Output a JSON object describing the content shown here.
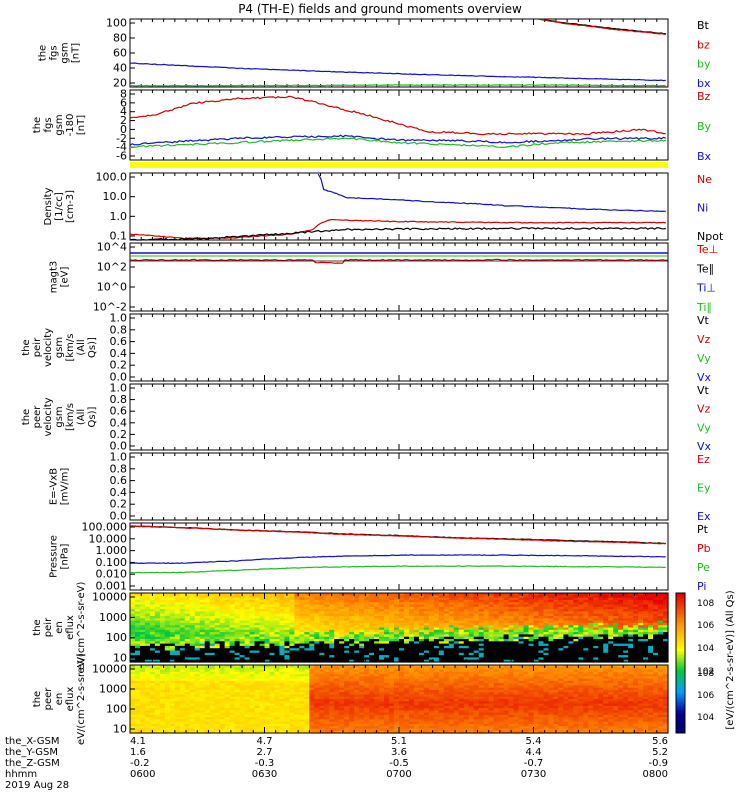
{
  "title": "P4 (TH-E) fields and ground moments overview",
  "colors": {
    "black": "#000000",
    "red": "#d00000",
    "green": "#22bb22",
    "blue": "#1010c8",
    "yellow": "#ffff00"
  },
  "time_axis": {
    "ticks": [
      "0600",
      "0630",
      "0700",
      "0730",
      "0800"
    ],
    "x_gsm": [
      "4.1",
      "4.7",
      "5.1",
      "5.4",
      "5.6"
    ],
    "y_gsm": [
      "1.6",
      "2.7",
      "3.6",
      "4.4",
      "5.2"
    ],
    "z_gsm": [
      "-0.2",
      "-0.3",
      "-0.5",
      "-0.7",
      "-0.9"
    ],
    "row_labels": [
      "the_X-GSM",
      "the_Y-GSM",
      "the_Z-GSM",
      "hhmm"
    ],
    "date": "2019 Aug 28"
  },
  "chart_data": [
    {
      "type": "line",
      "id": "fgs_btot",
      "ylabel": "the fgs gsm [nT]",
      "ylim": [
        0,
        105
      ],
      "yticks": [
        "100",
        "80",
        "60",
        "40",
        "20"
      ],
      "series": [
        {
          "name": "Bt",
          "color": "#000000",
          "points": [
            [
              0.76,
              105
            ],
            [
              0.8,
              100
            ],
            [
              0.85,
              95
            ],
            [
              0.9,
              90
            ],
            [
              0.95,
              86
            ],
            [
              1.0,
              82
            ]
          ]
        },
        {
          "name": "bz",
          "color": "#d00000",
          "points": [
            [
              0.76,
              105
            ],
            [
              0.8,
              99
            ],
            [
              0.85,
              94
            ],
            [
              0.9,
              89
            ],
            [
              0.95,
              85
            ],
            [
              1.0,
              81
            ]
          ]
        },
        {
          "name": "by",
          "color": "#22bb22",
          "points": [
            [
              0,
              2
            ],
            [
              0.2,
              2
            ],
            [
              0.5,
              3
            ],
            [
              0.8,
              3
            ],
            [
              1.0,
              2
            ]
          ]
        },
        {
          "name": "bx",
          "color": "#1010c8",
          "points": [
            [
              0,
              37
            ],
            [
              0.2,
              29
            ],
            [
              0.4,
              23
            ],
            [
              0.6,
              18
            ],
            [
              0.8,
              14
            ],
            [
              1.0,
              10
            ]
          ]
        }
      ]
    },
    {
      "type": "line",
      "id": "fgs_bcomp",
      "ylabel": "the fgs gsm -180 [nT]",
      "ylim": [
        -7,
        9
      ],
      "yticks": [
        "8",
        "6",
        "4",
        "2",
        "0",
        "-2",
        "-4",
        "-6"
      ],
      "series": [
        {
          "name": "Bz",
          "color": "#d00000",
          "points": [
            [
              0,
              2.5
            ],
            [
              0.05,
              3.5
            ],
            [
              0.12,
              6
            ],
            [
              0.2,
              7
            ],
            [
              0.3,
              7.5
            ],
            [
              0.35,
              6
            ],
            [
              0.45,
              3
            ],
            [
              0.55,
              -0.5
            ],
            [
              0.65,
              -1
            ],
            [
              0.75,
              -1
            ],
            [
              0.85,
              -1
            ],
            [
              0.9,
              -0.5
            ],
            [
              0.95,
              0
            ],
            [
              1.0,
              -1
            ]
          ]
        },
        {
          "name": "By",
          "color": "#22bb22",
          "points": [
            [
              0,
              -4
            ],
            [
              0.2,
              -3
            ],
            [
              0.4,
              -2
            ],
            [
              0.5,
              -3
            ],
            [
              0.6,
              -3.5
            ],
            [
              0.7,
              -4
            ],
            [
              0.8,
              -3
            ],
            [
              1.0,
              -2.5
            ]
          ]
        },
        {
          "name": "Bx",
          "color": "#1010c8",
          "points": [
            [
              0,
              -3.5
            ],
            [
              0.2,
              -2
            ],
            [
              0.4,
              -1.5
            ],
            [
              0.5,
              -2.5
            ],
            [
              0.6,
              -2.5
            ],
            [
              0.7,
              -3
            ],
            [
              0.85,
              -2.2
            ],
            [
              1.0,
              -2
            ]
          ]
        }
      ]
    },
    {
      "type": "line",
      "id": "density",
      "ylabel": "Density [1/cc] [cm-3]",
      "scale": "log",
      "ylim": [
        0.1,
        300
      ],
      "yticks": [
        "100.0",
        "10.0",
        "1.0",
        "0.1"
      ],
      "series": [
        {
          "name": "Ne",
          "color": "#d00000",
          "points": [
            [
              0,
              0.2
            ],
            [
              0.1,
              0.12
            ],
            [
              0.2,
              0.13
            ],
            [
              0.3,
              0.2
            ],
            [
              0.34,
              0.35
            ],
            [
              0.37,
              1.1
            ],
            [
              0.5,
              0.9
            ],
            [
              0.7,
              0.8
            ],
            [
              1.0,
              0.8
            ]
          ]
        },
        {
          "name": "Ni",
          "color": "#1010c8",
          "points": [
            [
              0.35,
              250
            ],
            [
              0.36,
              40
            ],
            [
              0.4,
              16
            ],
            [
              0.55,
              10
            ],
            [
              0.7,
              6
            ],
            [
              0.85,
              4
            ],
            [
              1.0,
              3
            ]
          ]
        },
        {
          "name": "Npot",
          "color": "#000000",
          "points": [
            [
              0,
              0.1
            ],
            [
              0.15,
              0.12
            ],
            [
              0.3,
              0.22
            ],
            [
              0.4,
              0.35
            ],
            [
              0.55,
              0.38
            ],
            [
              0.75,
              0.4
            ],
            [
              1.0,
              0.4
            ]
          ]
        }
      ]
    },
    {
      "type": "line",
      "id": "temperature",
      "ylabel": "magt3 [eV]",
      "scale": "log",
      "yticks": [
        "10^4",
        "10^2",
        "10^0",
        "10^-2"
      ],
      "series": [
        {
          "name": "Te⊥",
          "color": "#d00000",
          "level": "high"
        },
        {
          "name": "Te∥",
          "color": "#000000",
          "level": "high"
        },
        {
          "name": "Ti⊥",
          "color": "#1010c8",
          "level": "high"
        },
        {
          "name": "Ti∥",
          "color": "#22bb22",
          "level": "high"
        }
      ]
    },
    {
      "type": "line",
      "id": "peir_velocity",
      "ylabel": "the peir velocity gsm [km/s (All Qs)]",
      "ylim": [
        0,
        1
      ],
      "yticks": [
        "1.0",
        "0.8",
        "0.6",
        "0.4",
        "0.2",
        "0.0"
      ],
      "series": [
        {
          "name": "Vt",
          "color": "#000000"
        },
        {
          "name": "Vz",
          "color": "#d00000"
        },
        {
          "name": "Vy",
          "color": "#22bb22"
        },
        {
          "name": "Vx",
          "color": "#1010c8"
        }
      ]
    },
    {
      "type": "line",
      "id": "peer_velocity",
      "ylabel": "the peer velocity gsm [km/s (All Qs)]",
      "ylim": [
        0,
        1
      ],
      "yticks": [
        "1.0",
        "0.8",
        "0.6",
        "0.4",
        "0.2",
        "0.0"
      ],
      "series": [
        {
          "name": "Vt",
          "color": "#000000"
        },
        {
          "name": "Vz",
          "color": "#d00000"
        },
        {
          "name": "Vy",
          "color": "#22bb22"
        },
        {
          "name": "Vx",
          "color": "#1010c8"
        }
      ]
    },
    {
      "type": "line",
      "id": "efield",
      "ylabel": "E=-VxB [mV/m]",
      "ylim": [
        0,
        1
      ],
      "yticks": [
        "1.0",
        "0.8",
        "0.6",
        "0.4",
        "0.2",
        "0.0"
      ],
      "series": [
        {
          "name": "Ez",
          "color": "#d00000"
        },
        {
          "name": "Ey",
          "color": "#22bb22"
        },
        {
          "name": "Ex",
          "color": "#1010c8"
        }
      ]
    },
    {
      "type": "line",
      "id": "pressure",
      "ylabel": "Pressure [nPa]",
      "scale": "log",
      "ylim": [
        0.001,
        100
      ],
      "yticks": [
        "100.000",
        "10.000",
        "1.000",
        "0.100",
        "0.010",
        "0.001"
      ],
      "series": [
        {
          "name": "Pt",
          "color": "#000000",
          "points": [
            [
              0,
              60
            ],
            [
              0.2,
              30
            ],
            [
              0.4,
              15
            ],
            [
              0.6,
              8
            ],
            [
              0.8,
              5
            ],
            [
              1.0,
              3
            ]
          ]
        },
        {
          "name": "Pb",
          "color": "#d00000",
          "points": [
            [
              0,
              58
            ],
            [
              0.2,
              29
            ],
            [
              0.4,
              14
            ],
            [
              0.6,
              7.5
            ],
            [
              0.8,
              4.5
            ],
            [
              1.0,
              2.8
            ]
          ]
        },
        {
          "name": "Pe",
          "color": "#22bb22",
          "points": [
            [
              0,
              0.02
            ],
            [
              0.1,
              0.02
            ],
            [
              0.2,
              0.03
            ],
            [
              0.35,
              0.05
            ],
            [
              0.5,
              0.06
            ],
            [
              0.7,
              0.06
            ],
            [
              1.0,
              0.05
            ]
          ]
        },
        {
          "name": "Pi",
          "color": "#1010c8",
          "points": [
            [
              0,
              0.1
            ],
            [
              0.1,
              0.1
            ],
            [
              0.2,
              0.15
            ],
            [
              0.35,
              0.3
            ],
            [
              0.5,
              0.4
            ],
            [
              0.7,
              0.4
            ],
            [
              1.0,
              0.3
            ]
          ]
        }
      ]
    },
    {
      "type": "heatmap",
      "id": "peir_eflux",
      "ylabel": "the peir en eflux eV/(cm^2-s-sr-eV)",
      "scale": "log",
      "ylim": [
        5,
        20000
      ],
      "yticks": [
        "10000",
        "1000",
        "100",
        "10"
      ]
    },
    {
      "type": "heatmap",
      "id": "peer_eflux",
      "ylabel": "the peer en eflux eV/(cm^2-s-sr-eV)",
      "scale": "log",
      "ylim": [
        5,
        20000
      ],
      "yticks": [
        "10000",
        "1000",
        "100",
        "10"
      ]
    }
  ],
  "colorbar": {
    "ticks": [
      "10^8",
      "10^6",
      "10^4",
      "10^2"
    ],
    "label": "[eV/(cm^2-s-sr-eV)] (All Qs)"
  }
}
